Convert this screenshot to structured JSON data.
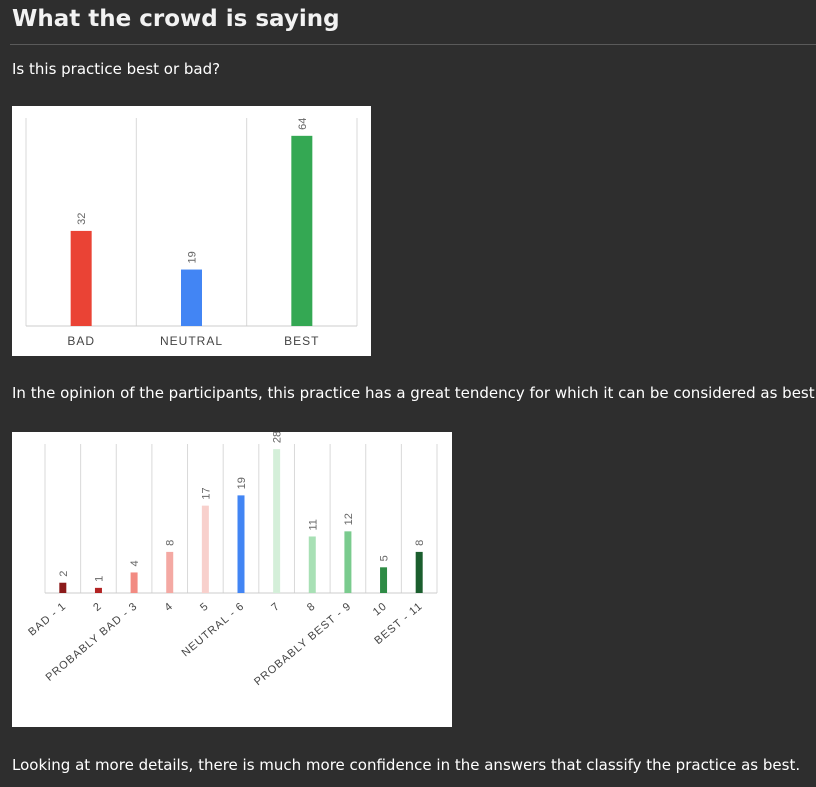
{
  "header": {
    "title": "What the crowd is saying"
  },
  "question": "Is this practice best or bad?",
  "summary_1": "In the opinion of the participants, this practice has a great tendency for which it can be considered as best.",
  "summary_2": "Looking at more details, there is much more confidence in the answers that classify the practice as best.",
  "chart_data": [
    {
      "type": "bar",
      "title": "",
      "xlabel": "",
      "ylabel": "",
      "categories": [
        "BAD",
        "NEUTRAL",
        "BEST"
      ],
      "values": [
        32,
        19,
        64
      ],
      "colors": [
        "#ea4335",
        "#4285f4",
        "#34a853"
      ],
      "ylim": [
        0,
        70
      ],
      "grid": "vertical",
      "data_labels": true
    },
    {
      "type": "bar",
      "title": "",
      "xlabel": "",
      "ylabel": "",
      "categories": [
        "BAD - 1",
        "2",
        "PROBABLY BAD - 3",
        "4",
        "5",
        "NEUTRAL - 6",
        "7",
        "8",
        "PROBABLY BEST - 9",
        "10",
        "BEST - 11"
      ],
      "values": [
        2,
        1,
        4,
        8,
        17,
        19,
        28,
        11,
        12,
        5,
        8
      ],
      "colors": [
        "#8b1a1a",
        "#b22222",
        "#f28b82",
        "#f4a9a3",
        "#f8d0cc",
        "#4285f4",
        "#d4efd9",
        "#a8e0b5",
        "#7acb8e",
        "#2e8b45",
        "#1b5e2e"
      ],
      "ylim": [
        0,
        29
      ],
      "grid": "vertical",
      "data_labels": true
    }
  ]
}
